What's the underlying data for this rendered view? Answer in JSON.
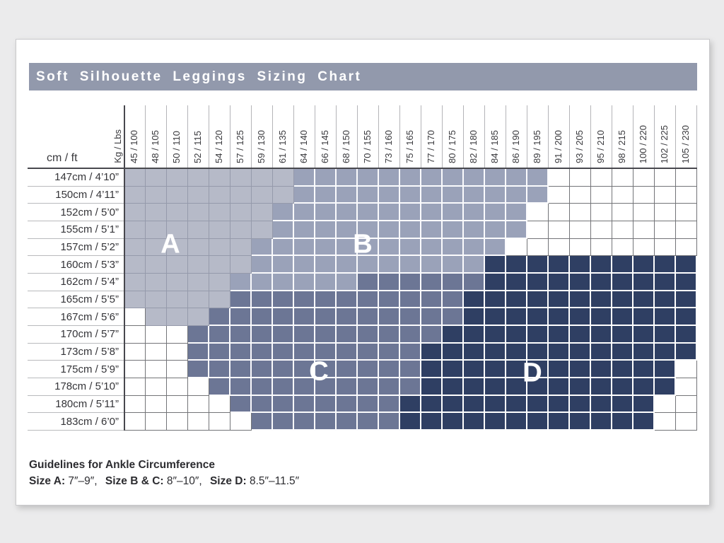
{
  "window": {
    "title": "Soft Silhouette Leggings Sizing Chart"
  },
  "chart_data": {
    "type": "heatmap",
    "title": "Soft Silhouette Leggings Sizing Chart",
    "x_axis_unit": "Kg / Lbs",
    "y_axis_unit": "cm / ft",
    "x_categories": [
      "45 / 100",
      "48 / 105",
      "50 / 110",
      "52 / 115",
      "54 / 120",
      "57 / 125",
      "59 / 130",
      "61 / 135",
      "64 / 140",
      "66 / 145",
      "68 / 150",
      "70 / 155",
      "73 / 160",
      "75 / 165",
      "77 / 170",
      "80 / 175",
      "82 / 180",
      "84 / 185",
      "86 / 190",
      "89 / 195",
      "91 / 200",
      "93 / 205",
      "95 / 210",
      "98 / 215",
      "100 / 220",
      "102 / 225",
      "105 / 230"
    ],
    "y_categories": [
      "147cm / 4’10”",
      "150cm / 4’11”",
      "152cm / 5’0”",
      "155cm / 5’1”",
      "157cm / 5’2”",
      "160cm / 5’3”",
      "162cm / 5’4”",
      "165cm / 5’5”",
      "167cm / 5’6”",
      "170cm / 5’7”",
      "173cm / 5’8”",
      "175cm / 5’9”",
      "178cm / 5’10”",
      "180cm / 5’11”",
      "183cm / 6’0”"
    ],
    "sizes": [
      "A",
      "B",
      "C",
      "D"
    ],
    "empty_marker": ".",
    "cell_size_matrix": [
      "AAAAAAAABBBBBBBBBBBB.......",
      "AAAAAAAABBBBBBBBBBBB.......",
      "AAAAAAABBBBBBBBBBBB........",
      "AAAAAAABBBBBBBBBBBB........",
      "AAAAAABBBBBBBBBBBB.........",
      "AAAAAABBBBBBBBBBBDDDDDDDDDD",
      "AAAAABBBBBBCCCCCCDDDDDDDDDD",
      "AAAAACCCCCCCCCCCDDDDDDDDDDD",
      ".AAACCCCCCCCCCCCDDDDDDDDDDD",
      "...CCCCCCCCCCCCDDDDDDDDDDDD",
      "...CCCCCCCCCCCDDDDDDDDDDDDD",
      "...CCCCCCCCCCCDDDDDDDDDDDD.",
      "....CCCCCCCCCCDDDDDDDDDDDD.",
      ".....CCCCCCCCDDDDDDDDDDDD..",
      "......CCCCCCCDDDDDDDDDDDD.."
    ]
  },
  "footer": {
    "heading": "Guidelines for Ankle Circumference",
    "items": [
      {
        "label": "Size A:",
        "value": "7″–9″,"
      },
      {
        "label": "Size B & C:",
        "value": "8″–10″,"
      },
      {
        "label": "Size D:",
        "value": "8.5″–11.5″"
      }
    ]
  },
  "colors": {
    "size_A": "#b6bac8",
    "size_B": "#9aa2b9",
    "size_C": "#6c7695",
    "size_D": "#2f3f63",
    "header_bar": "#9299ac",
    "empty": "#ffffff"
  }
}
